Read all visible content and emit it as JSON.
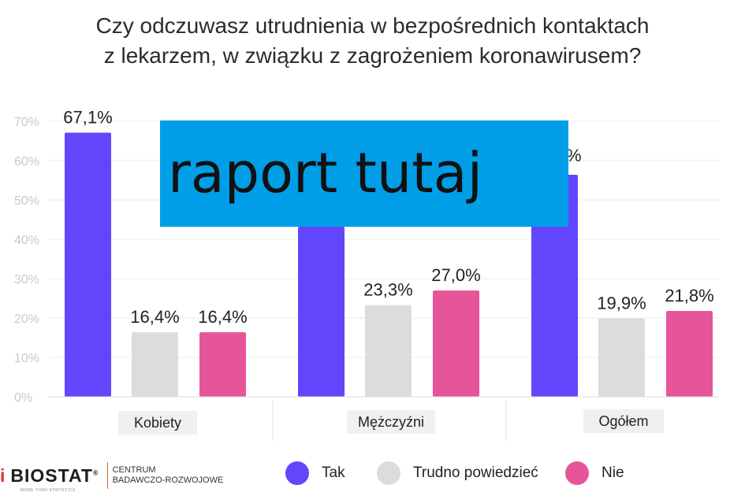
{
  "title": {
    "line1": "Czy odczuwasz utrudnienia w bezpośrednich kontaktach",
    "line2": "z lekarzem, w związku z zagrożeniem koronawirusem?"
  },
  "overlay_text": "raport tutaj",
  "logo": {
    "brand": "BIOSTAT",
    "registered": "®",
    "tagline": "MORE THAN STATISTICS",
    "org_line1": "CENTRUM",
    "org_line2": "BADAWCZO-ROZWOJOWE"
  },
  "legend": [
    {
      "label": "Tak",
      "color": "#6346fb"
    },
    {
      "label": "Trudno powiedzieć",
      "color": "#dcdcdc"
    },
    {
      "label": "Nie",
      "color": "#e6559a"
    }
  ],
  "chart_data": {
    "type": "bar",
    "title": "Czy odczuwasz utrudnienia w bezpośrednich kontaktach z lekarzem, w związku z zagrożeniem koronawirusem?",
    "categories": [
      "Kobiety",
      "Mężczyźni",
      "Ogółem"
    ],
    "series": [
      {
        "name": "Tak",
        "color": "#6346fb",
        "values": [
          67.1,
          null,
          null
        ],
        "labels": [
          "67,1%",
          "",
          "%"
        ]
      },
      {
        "name": "Trudno powiedzieć",
        "color": "#dcdcdc",
        "values": [
          16.4,
          23.3,
          19.9
        ],
        "labels": [
          "16,4%",
          "23,3%",
          "19,9%"
        ]
      },
      {
        "name": "Nie",
        "color": "#e6559a",
        "values": [
          16.4,
          27.0,
          21.8
        ],
        "labels": [
          "16,4%",
          "27,0%",
          "21,8%"
        ]
      }
    ],
    "ylim": [
      0,
      70
    ],
    "yticks": [
      "0%",
      "10%",
      "20%",
      "30%",
      "40%",
      "50%",
      "60%",
      "70%"
    ],
    "grid": true,
    "legend_position": "bottom",
    "xlabel": "",
    "ylabel": ""
  }
}
